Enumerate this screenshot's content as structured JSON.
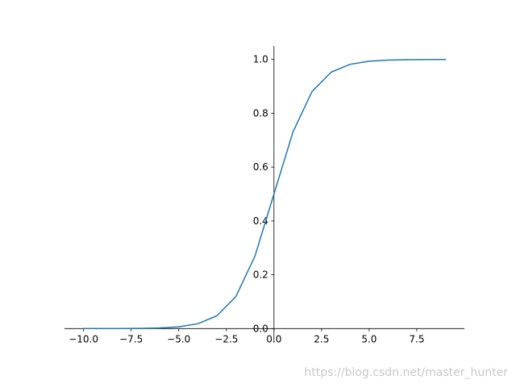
{
  "chart_data": {
    "type": "line",
    "title": "",
    "xlabel": "",
    "ylabel": "",
    "xlim": [
      -11,
      10
    ],
    "ylim": [
      -0.05,
      1.05
    ],
    "x_ticks": [
      -10.0,
      -7.5,
      -5.0,
      -2.5,
      0.0,
      2.5,
      5.0,
      7.5
    ],
    "x_tick_labels": [
      "−10.0",
      "−7.5",
      "−5.0",
      "−2.5",
      "0.0",
      "2.5",
      "5.0",
      "7.5"
    ],
    "y_ticks": [
      0.0,
      0.2,
      0.4,
      0.6,
      0.8,
      1.0
    ],
    "y_tick_labels": [
      "0.0",
      "0.2",
      "0.4",
      "0.6",
      "0.8",
      "1.0"
    ],
    "spines": "centered axes at x=0 and y=0, top and right hidden",
    "grid": false,
    "legend": "none",
    "series": [
      {
        "color": "#1f77b4",
        "x": [
          -10,
          -9,
          -8,
          -7,
          -6,
          -5,
          -4,
          -3,
          -2,
          -1,
          0,
          1,
          2,
          3,
          4,
          5,
          6,
          7,
          8,
          9
        ],
        "y": [
          4.54e-05,
          0.0001234,
          0.0003354,
          0.0009111,
          0.0024726,
          0.0066929,
          0.0179862,
          0.0474259,
          0.1192029,
          0.2689414,
          0.5,
          0.7310586,
          0.8807971,
          0.9525741,
          0.9820138,
          0.9933071,
          0.9975274,
          0.9990889,
          0.9996646,
          0.9998766
        ]
      }
    ]
  },
  "watermark": "https://blog.csdn.net/master_hunter"
}
